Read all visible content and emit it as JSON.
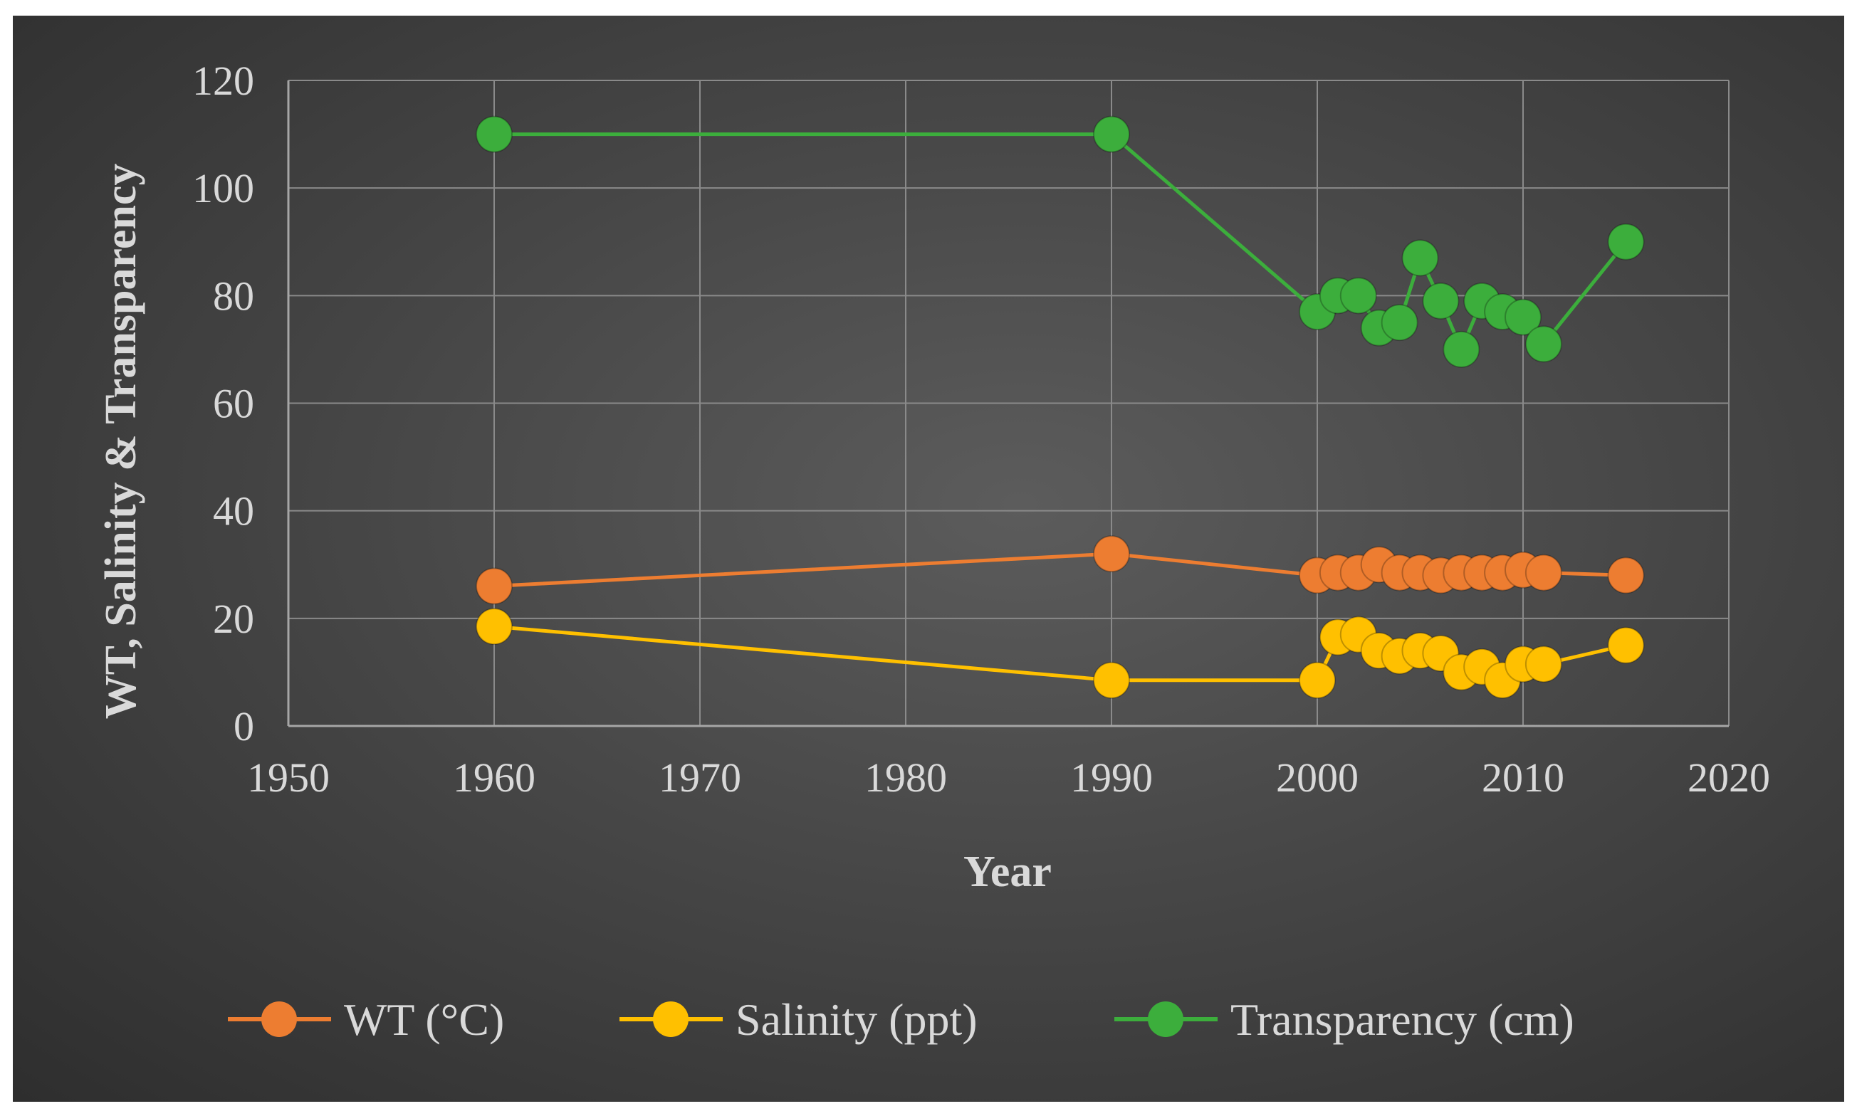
{
  "chart_data": {
    "type": "line",
    "title": "",
    "xlabel": "Year",
    "ylabel": "WT, Salinity & Transparency",
    "xlim": [
      1950,
      2020
    ],
    "ylim": [
      0,
      120
    ],
    "xticks": [
      "1950",
      "1960",
      "1970",
      "1980",
      "1990",
      "2000",
      "2010",
      "2020"
    ],
    "yticks": [
      "0",
      "20",
      "40",
      "60",
      "80",
      "100",
      "120"
    ],
    "grid": true,
    "legend_position": "bottom",
    "series": [
      {
        "name": "WT (°C)",
        "color": "#ed7d31",
        "x": [
          1960,
          1990,
          2000,
          2001,
          2002,
          2003,
          2004,
          2005,
          2006,
          2007,
          2008,
          2009,
          2010,
          2011,
          2015
        ],
        "y": [
          26,
          32,
          28,
          28.5,
          28.5,
          30,
          28.5,
          28.5,
          28,
          28.5,
          28.5,
          28.5,
          29,
          28.5,
          28
        ]
      },
      {
        "name": "Salinity (ppt)",
        "color": "#ffc000",
        "x": [
          1960,
          1990,
          2000,
          2001,
          2002,
          2003,
          2004,
          2005,
          2006,
          2007,
          2008,
          2009,
          2010,
          2011,
          2015
        ],
        "y": [
          18.5,
          8.5,
          8.5,
          16.5,
          17,
          14,
          13,
          14,
          13.5,
          10,
          11,
          8.5,
          11.5,
          11.5,
          15
        ]
      },
      {
        "name": "Transparency (cm)",
        "color": "#3cae3c",
        "x": [
          1960,
          1990,
          2000,
          2001,
          2002,
          2003,
          2004,
          2005,
          2006,
          2007,
          2008,
          2009,
          2010,
          2011,
          2015
        ],
        "y": [
          110,
          110,
          77,
          80,
          80,
          74,
          75,
          87,
          79,
          70,
          79,
          77,
          76,
          71,
          90
        ]
      }
    ]
  }
}
